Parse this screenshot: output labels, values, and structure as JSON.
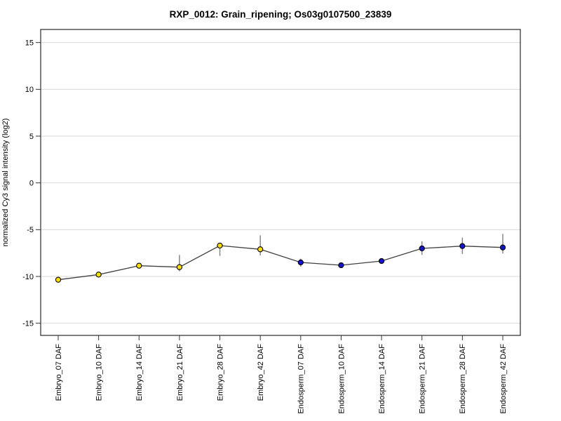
{
  "chart_data": {
    "type": "line",
    "title": "RXP_0012: Grain_ripening; Os03g0107500_23839",
    "xlabel": "",
    "ylabel": "normalized Cy3 signal intensity (log2)",
    "ylim": [
      -16.3,
      16.4
    ],
    "yticks": [
      15,
      10,
      5,
      0,
      -5,
      -10,
      -15
    ],
    "grid": true,
    "legend": "none",
    "categories": [
      "Embryo_07 DAF",
      "Embryo_10 DAF",
      "Embryo_14 DAF",
      "Embryo_21 DAF",
      "Embryo_28 DAF",
      "Embryo_42 DAF",
      "Endosperm_07 DAF",
      "Endosperm_10 DAF",
      "Endosperm_14 DAF",
      "Endosperm_21 DAF",
      "Endosperm_28 DAF",
      "Endosperm_42 DAF"
    ],
    "series": [
      {
        "name": "normalized Cy3 signal intensity",
        "points": [
          {
            "label": "Embryo_07 DAF",
            "value": -10.35,
            "err_lo": -10.5,
            "err_hi": -10.25,
            "group": "Embryo"
          },
          {
            "label": "Embryo_10 DAF",
            "value": -9.8,
            "err_lo": -10.0,
            "err_hi": -9.55,
            "group": "Embryo"
          },
          {
            "label": "Embryo_14 DAF",
            "value": -8.85,
            "err_lo": -9.1,
            "err_hi": -8.6,
            "group": "Embryo"
          },
          {
            "label": "Embryo_21 DAF",
            "value": -9.0,
            "err_lo": -9.45,
            "err_hi": -7.7,
            "group": "Embryo"
          },
          {
            "label": "Embryo_28 DAF",
            "value": -6.7,
            "err_lo": -7.8,
            "err_hi": -6.55,
            "group": "Embryo"
          },
          {
            "label": "Embryo_42 DAF",
            "value": -7.1,
            "err_lo": -7.75,
            "err_hi": -5.6,
            "group": "Embryo"
          },
          {
            "label": "Endosperm_07 DAF",
            "value": -8.5,
            "err_lo": -8.95,
            "err_hi": -8.1,
            "group": "Endosperm"
          },
          {
            "label": "Endosperm_10 DAF",
            "value": -8.8,
            "err_lo": -8.95,
            "err_hi": -8.6,
            "group": "Endosperm"
          },
          {
            "label": "Endosperm_14 DAF",
            "value": -8.35,
            "err_lo": -8.65,
            "err_hi": -8.05,
            "group": "Endosperm"
          },
          {
            "label": "Endosperm_21 DAF",
            "value": -7.0,
            "err_lo": -7.7,
            "err_hi": -6.25,
            "group": "Endosperm"
          },
          {
            "label": "Endosperm_28 DAF",
            "value": -6.75,
            "err_lo": -7.6,
            "err_hi": -5.85,
            "group": "Endosperm"
          },
          {
            "label": "Endosperm_42 DAF",
            "value": -6.9,
            "err_lo": -7.55,
            "err_hi": -5.45,
            "group": "Endosperm"
          }
        ]
      }
    ],
    "group_colors": {
      "Embryo": "#fcdd00",
      "Endosperm": "#1414c8"
    },
    "style": {
      "background": "#ffffff",
      "plot_border_color": "#3a3a3a",
      "grid_color": "#d9d9d9",
      "line_color": "#404040",
      "error_bar_color": "#808080",
      "marker_outline": "#000000",
      "tick_color": "#333333"
    }
  }
}
